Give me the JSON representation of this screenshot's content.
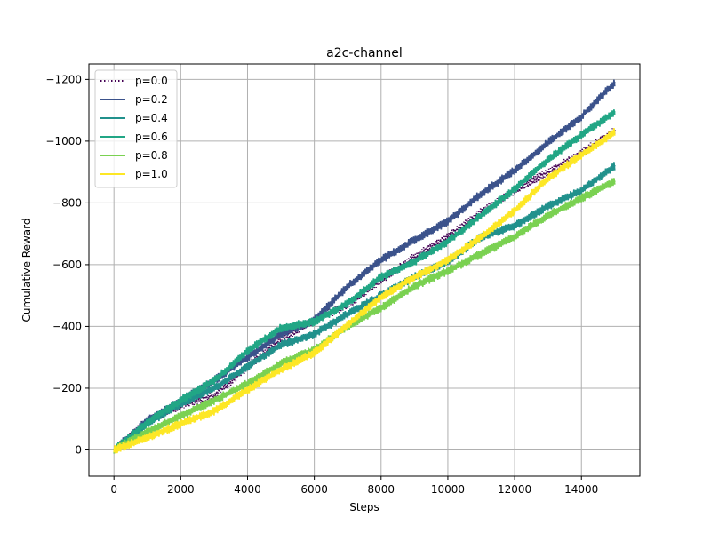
{
  "chart_data": {
    "type": "line",
    "title": "a2c-channel",
    "xlabel": "Steps",
    "ylabel": "Cumulative Reward",
    "xlim": [
      -750,
      15750
    ],
    "ylim": [
      85,
      -1250
    ],
    "y_inverted": true,
    "xticks": [
      0,
      2000,
      4000,
      6000,
      8000,
      10000,
      12000,
      14000
    ],
    "xtick_labels": [
      "0",
      "2000",
      "4000",
      "6000",
      "8000",
      "10000",
      "12000",
      "14000"
    ],
    "yticks": [
      0,
      -200,
      -400,
      -600,
      -800,
      -1000,
      -1200
    ],
    "ytick_labels": [
      "0",
      "−200",
      "−400",
      "−600",
      "−800",
      "−1000",
      "−1200"
    ],
    "grid": true,
    "legend_position": "top-left",
    "noise_band": 15,
    "series": [
      {
        "name": "p=0.0",
        "color": "#440154",
        "style": "dotted",
        "x": [
          0,
          1000,
          2000,
          3000,
          4000,
          5000,
          6000,
          7000,
          8000,
          9000,
          10000,
          11000,
          12000,
          13000,
          14000,
          15000
        ],
        "y": [
          0,
          -95,
          -145,
          -175,
          -270,
          -355,
          -420,
          -470,
          -550,
          -625,
          -690,
          -770,
          -840,
          -900,
          -960,
          -1035
        ]
      },
      {
        "name": "p=0.2",
        "color": "#3b528b",
        "style": "solid",
        "x": [
          0,
          1000,
          2000,
          3000,
          4000,
          5000,
          6000,
          7000,
          8000,
          9000,
          10000,
          11000,
          12000,
          13000,
          14000,
          15000
        ],
        "y": [
          0,
          -95,
          -160,
          -225,
          -300,
          -375,
          -420,
          -530,
          -615,
          -680,
          -740,
          -830,
          -905,
          -995,
          -1080,
          -1190
        ]
      },
      {
        "name": "p=0.4",
        "color": "#21918c",
        "style": "solid",
        "x": [
          0,
          1000,
          2000,
          3000,
          4000,
          5000,
          6000,
          7000,
          8000,
          9000,
          10000,
          11000,
          12000,
          13000,
          14000,
          15000
        ],
        "y": [
          0,
          -85,
          -150,
          -200,
          -270,
          -340,
          -375,
          -440,
          -500,
          -560,
          -610,
          -690,
          -725,
          -790,
          -840,
          -920
        ]
      },
      {
        "name": "p=0.6",
        "color": "#21a685",
        "style": "solid",
        "x": [
          0,
          1000,
          2000,
          3000,
          4000,
          5000,
          6000,
          7000,
          8000,
          9000,
          10000,
          11000,
          12000,
          13000,
          14000,
          15000
        ],
        "y": [
          0,
          -90,
          -160,
          -225,
          -320,
          -395,
          -415,
          -475,
          -560,
          -610,
          -675,
          -760,
          -845,
          -940,
          -1020,
          -1095
        ]
      },
      {
        "name": "p=0.8",
        "color": "#7ad151",
        "style": "solid",
        "x": [
          0,
          1000,
          2000,
          3000,
          4000,
          5000,
          6000,
          7000,
          8000,
          9000,
          10000,
          11000,
          12000,
          13000,
          14000,
          15000
        ],
        "y": [
          0,
          -60,
          -110,
          -160,
          -215,
          -280,
          -325,
          -400,
          -460,
          -530,
          -580,
          -635,
          -690,
          -760,
          -815,
          -870
        ]
      },
      {
        "name": "p=1.0",
        "color": "#fde725",
        "style": "solid",
        "x": [
          0,
          1000,
          2000,
          3000,
          4000,
          5000,
          6000,
          7000,
          8000,
          9000,
          10000,
          11000,
          12000,
          13000,
          14000,
          15000
        ],
        "y": [
          0,
          -40,
          -85,
          -125,
          -195,
          -260,
          -315,
          -405,
          -495,
          -560,
          -615,
          -690,
          -775,
          -880,
          -955,
          -1030
        ]
      }
    ]
  }
}
